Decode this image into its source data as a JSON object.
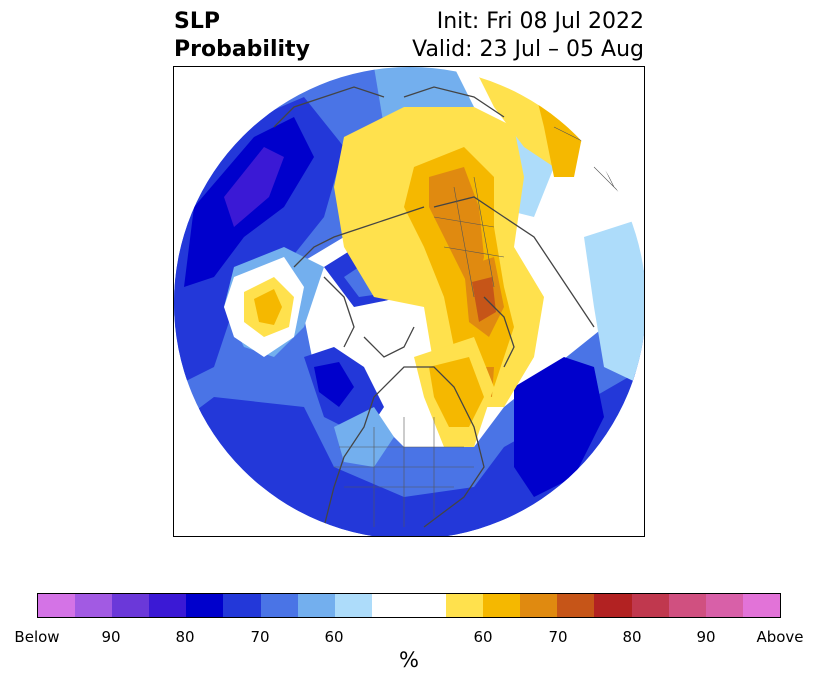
{
  "title": {
    "left_line1": "SLP",
    "left_line2": "Probability",
    "right_line1": "Init: Fri 08 Jul 2022",
    "right_line2": "Valid: 23 Jul – 05 Aug"
  },
  "colorbar": {
    "colors": [
      "#d473e6",
      "#a25ae3",
      "#6b38d9",
      "#3b19d5",
      "#0000cc",
      "#2338d9",
      "#4a74e6",
      "#73afee",
      "#addcfa",
      "#ffffff",
      "#ffffff",
      "#ffe14d",
      "#f5b800",
      "#e08a10",
      "#c65518",
      "#b22222",
      "#c0384e",
      "#d05080",
      "#d860a8",
      "#e273d8"
    ],
    "ticks": [
      "Below",
      "90",
      "80",
      "70",
      "60",
      "60",
      "70",
      "80",
      "90",
      "Above"
    ],
    "unit": "%"
  }
}
